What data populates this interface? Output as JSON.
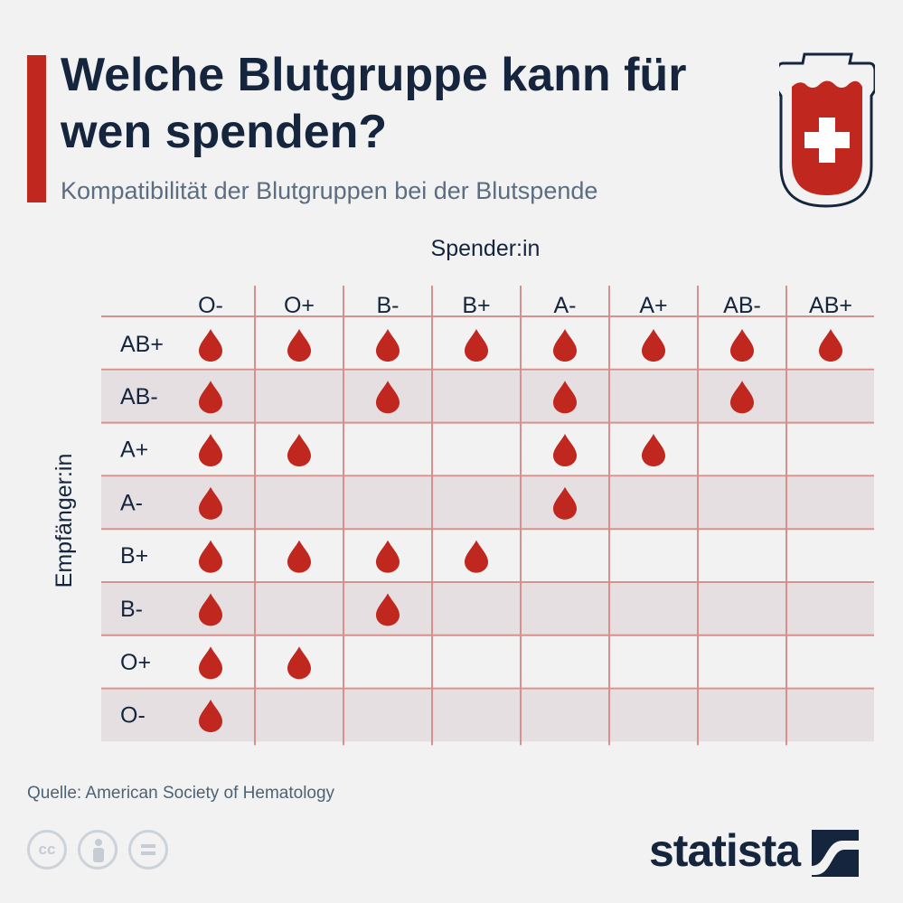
{
  "header": {
    "title": "Welche Blutgruppe kann für wen spenden?",
    "subtitle": "Kompatibilität der Blutgruppen bei der Blutspende"
  },
  "chart_data": {
    "type": "table",
    "column_axis_label": "Spender:in",
    "row_axis_label": "Empfänger:in",
    "columns": [
      "O-",
      "O+",
      "B-",
      "B+",
      "A-",
      "A+",
      "AB-",
      "AB+"
    ],
    "rows": [
      {
        "label": "AB+",
        "compatible": [
          true,
          true,
          true,
          true,
          true,
          true,
          true,
          true
        ]
      },
      {
        "label": "AB-",
        "compatible": [
          true,
          false,
          true,
          false,
          true,
          false,
          true,
          false
        ]
      },
      {
        "label": "A+",
        "compatible": [
          true,
          true,
          false,
          false,
          true,
          true,
          false,
          false
        ]
      },
      {
        "label": "A-",
        "compatible": [
          true,
          false,
          false,
          false,
          true,
          false,
          false,
          false
        ]
      },
      {
        "label": "B+",
        "compatible": [
          true,
          true,
          true,
          true,
          false,
          false,
          false,
          false
        ]
      },
      {
        "label": "B-",
        "compatible": [
          true,
          false,
          true,
          false,
          false,
          false,
          false,
          false
        ]
      },
      {
        "label": "O+",
        "compatible": [
          true,
          true,
          false,
          false,
          false,
          false,
          false,
          false
        ]
      },
      {
        "label": "O-",
        "compatible": [
          true,
          false,
          false,
          false,
          false,
          false,
          false,
          false
        ]
      }
    ],
    "marker": "blood-drop-icon",
    "colors": {
      "drop": "#c0271f",
      "grid_line": "#d9908d",
      "stripe": "#e5dfe2",
      "text": "#14253d"
    }
  },
  "footer": {
    "source": "Quelle: American Society of Hematology",
    "license_icons": [
      "cc-icon",
      "attribution-icon",
      "no-derivatives-icon"
    ],
    "license_cc_text": "cc",
    "brand": "statista"
  }
}
